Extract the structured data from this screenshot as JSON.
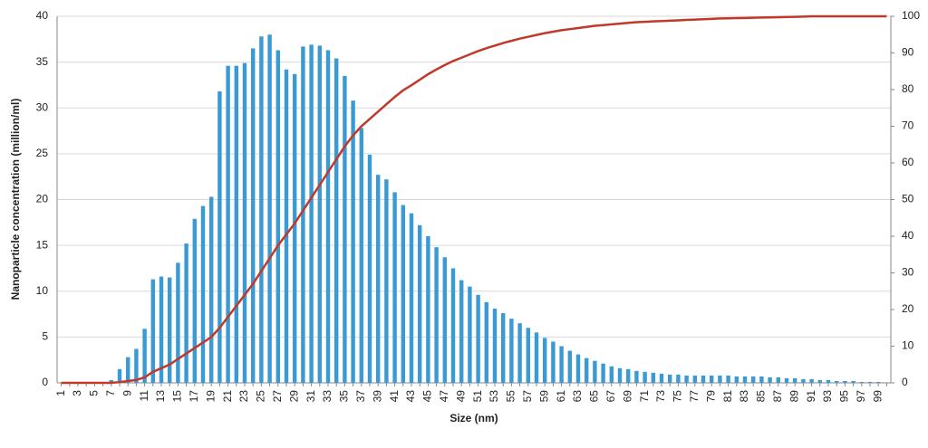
{
  "chart_data": {
    "type": "bar-line",
    "x_label": "Size (nm)",
    "y_label": "Nanoparticle concentration (million/ml)",
    "categories": [
      "1",
      null,
      "3",
      null,
      "5",
      null,
      "7",
      null,
      "9",
      null,
      "11",
      null,
      "13",
      null,
      "15",
      null,
      "17",
      null,
      "19",
      null,
      "21",
      null,
      "23",
      null,
      "25",
      null,
      "27",
      null,
      "29",
      null,
      "31",
      null,
      "33",
      null,
      "35",
      null,
      "37",
      null,
      "39",
      null,
      "41",
      null,
      "43",
      null,
      "45",
      null,
      "47",
      null,
      "49",
      null,
      "51",
      null,
      "53",
      null,
      "55",
      null,
      "57",
      null,
      "59",
      null,
      "61",
      null,
      "63",
      null,
      "65",
      null,
      "67",
      null,
      "69",
      null,
      "71",
      null,
      "73",
      null,
      "75",
      null,
      "77",
      null,
      "79",
      null,
      "81",
      null,
      "83",
      null,
      "85",
      null,
      "87",
      null,
      "89",
      null,
      "91",
      null,
      "93",
      null,
      "95",
      null,
      "97",
      null,
      "99",
      null
    ],
    "series": [
      {
        "type": "bar",
        "color": "#3a9ad4",
        "values": [
          0,
          0,
          0,
          0,
          0,
          0,
          0.3,
          1.5,
          2.8,
          3.7,
          5.9,
          11.3,
          11.6,
          11.5,
          13.1,
          15.2,
          17.9,
          19.3,
          20.3,
          31.8,
          34.6,
          34.6,
          34.9,
          36.5,
          37.8,
          38.0,
          36.3,
          34.2,
          33.7,
          36.7,
          36.9,
          36.8,
          36.3,
          35.4,
          33.5,
          30.8,
          27.8,
          24.9,
          22.7,
          22.2,
          20.8,
          19.4,
          18.5,
          17.2,
          16.0,
          14.8,
          13.7,
          12.5,
          11.2,
          10.5,
          9.6,
          8.8,
          8.1,
          7.6,
          7.0,
          6.5,
          6.0,
          5.5,
          4.9,
          4.5,
          4.0,
          3.5,
          3.1,
          2.7,
          2.4,
          2.1,
          1.8,
          1.6,
          1.5,
          1.3,
          1.2,
          1.1,
          1.0,
          0.9,
          0.9,
          0.8,
          0.8,
          0.8,
          0.8,
          0.8,
          0.8,
          0.7,
          0.7,
          0.7,
          0.7,
          0.6,
          0.6,
          0.5,
          0.5,
          0.4,
          0.4,
          0.3,
          0.3,
          0.2,
          0.2,
          0.2,
          0.1,
          0.1,
          0.1,
          0
        ]
      },
      {
        "type": "line",
        "axis": "y2",
        "color": "#c0392b",
        "values": [
          0,
          0,
          0,
          0,
          0,
          0,
          0,
          0.2,
          0.5,
          0.8,
          1.5,
          3,
          4,
          5,
          6.5,
          8,
          9.5,
          11,
          12.5,
          15,
          18,
          21,
          24,
          27,
          30.5,
          34,
          37.5,
          40.5,
          43.5,
          47,
          50.5,
          54,
          57.5,
          61,
          64.5,
          67.5,
          70,
          72,
          74,
          76,
          78,
          79.8,
          81.2,
          82.7,
          84.2,
          85.5,
          86.7,
          87.8,
          88.7,
          89.6,
          90.5,
          91.3,
          92,
          92.7,
          93.3,
          93.9,
          94.4,
          94.9,
          95.4,
          95.8,
          96.2,
          96.5,
          96.8,
          97.1,
          97.4,
          97.6,
          97.8,
          98,
          98.2,
          98.4,
          98.5,
          98.6,
          98.7,
          98.8,
          98.9,
          99,
          99.1,
          99.2,
          99.3,
          99.4,
          99.45,
          99.5,
          99.55,
          99.6,
          99.65,
          99.7,
          99.75,
          99.8,
          99.85,
          99.9,
          100,
          100,
          100,
          100,
          100,
          100,
          100,
          100,
          100,
          100
        ]
      }
    ],
    "ylim": [
      0,
      40
    ],
    "yticks": [
      0,
      5,
      10,
      15,
      20,
      25,
      30,
      35,
      40
    ],
    "y2lim": [
      0,
      100
    ],
    "y2ticks": [
      0,
      10,
      20,
      30,
      40,
      50,
      60,
      70,
      80,
      90,
      100
    ],
    "grid": true
  }
}
